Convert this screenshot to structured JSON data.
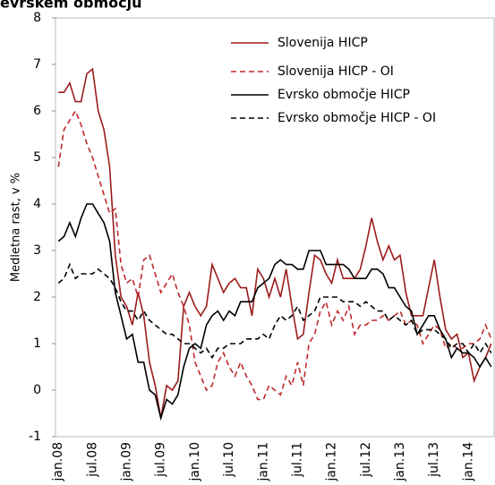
{
  "chart_data": {
    "type": "line",
    "title": "evrskem območju",
    "y_label": "Medletna rast, v %",
    "categories": [
      "jan.08",
      null,
      null,
      null,
      null,
      null,
      "jul.08",
      null,
      null,
      null,
      null,
      null,
      "jan.09",
      null,
      null,
      null,
      null,
      null,
      "jul.09",
      null,
      null,
      null,
      null,
      null,
      "jan.10",
      null,
      null,
      null,
      null,
      null,
      "jul.10",
      null,
      null,
      null,
      null,
      null,
      "jan.11",
      null,
      null,
      null,
      null,
      null,
      "jul.11",
      null,
      null,
      null,
      null,
      null,
      "jan.12",
      null,
      null,
      null,
      null,
      null,
      "jul.12",
      null,
      null,
      null,
      null,
      null,
      "jan.13",
      null,
      null,
      null,
      null,
      null,
      "jul.13",
      null,
      null,
      null,
      null,
      null,
      "jan.14",
      null,
      null,
      null,
      null
    ],
    "series": [
      {
        "name": "Slovenija HICP",
        "color": "#9b1c1c",
        "dash": false,
        "values": [
          6.4,
          6.4,
          6.6,
          6.2,
          6.2,
          6.8,
          6.9,
          6.0,
          5.6,
          4.8,
          2.9,
          2.0,
          1.8,
          1.4,
          2.1,
          1.6,
          0.6,
          0.1,
          -0.6,
          0.1,
          0.0,
          0.2,
          1.8,
          2.1,
          1.8,
          1.6,
          1.8,
          2.7,
          2.4,
          2.1,
          2.3,
          2.4,
          2.2,
          2.2,
          1.6,
          2.6,
          2.4,
          2.0,
          2.4,
          2.0,
          2.6,
          1.8,
          1.1,
          1.2,
          2.1,
          2.9,
          2.8,
          2.5,
          2.3,
          2.8,
          2.4,
          2.4,
          2.4,
          2.6,
          3.1,
          3.7,
          3.2,
          2.8,
          3.1,
          2.8,
          2.9,
          2.1,
          1.6,
          1.6,
          1.6,
          2.2,
          2.8,
          2.0,
          1.3,
          1.1,
          1.2,
          0.7,
          0.8,
          0.2,
          0.5,
          0.7,
          1.0
        ]
      },
      {
        "name": "Slovenija HICP - OI",
        "color": "#c0292b",
        "dash": true,
        "values": [
          4.8,
          5.6,
          5.8,
          6.0,
          5.7,
          5.3,
          5.0,
          4.6,
          4.2,
          3.8,
          3.9,
          2.7,
          2.3,
          2.4,
          2.0,
          2.8,
          2.9,
          2.5,
          2.1,
          2.3,
          2.5,
          2.1,
          1.8,
          1.4,
          0.6,
          0.3,
          0.0,
          0.1,
          0.6,
          0.8,
          0.5,
          0.3,
          0.6,
          0.3,
          0.1,
          -0.2,
          -0.2,
          0.1,
          0.0,
          -0.1,
          0.3,
          0.1,
          0.6,
          0.1,
          1.0,
          1.2,
          1.7,
          1.9,
          1.4,
          1.7,
          1.5,
          1.8,
          1.2,
          1.4,
          1.4,
          1.5,
          1.5,
          1.6,
          1.5,
          1.6,
          1.7,
          1.4,
          1.5,
          1.4,
          1.0,
          1.2,
          1.4,
          1.3,
          0.9,
          1.0,
          0.9,
          0.9,
          1.0,
          1.0,
          1.1,
          1.4,
          1.1
        ]
      },
      {
        "name": "Evrsko območje HICP",
        "color": "#000000",
        "dash": false,
        "values": [
          3.2,
          3.3,
          3.6,
          3.3,
          3.7,
          4.0,
          4.0,
          3.8,
          3.6,
          3.2,
          2.1,
          1.6,
          1.1,
          1.2,
          0.6,
          0.6,
          0.0,
          -0.1,
          -0.6,
          -0.2,
          -0.3,
          -0.1,
          0.5,
          0.9,
          1.0,
          0.9,
          1.4,
          1.6,
          1.7,
          1.5,
          1.7,
          1.6,
          1.9,
          1.9,
          1.9,
          2.2,
          2.3,
          2.4,
          2.7,
          2.8,
          2.7,
          2.7,
          2.6,
          2.6,
          3.0,
          3.0,
          3.0,
          2.7,
          2.7,
          2.7,
          2.7,
          2.6,
          2.4,
          2.4,
          2.4,
          2.6,
          2.6,
          2.5,
          2.2,
          2.2,
          2.0,
          1.8,
          1.7,
          1.2,
          1.4,
          1.6,
          1.6,
          1.3,
          1.1,
          0.7,
          0.9,
          0.8,
          0.8,
          0.7,
          0.5,
          0.7,
          0.5
        ]
      },
      {
        "name": "Evrsko območje HICP - OI",
        "color": "#000000",
        "dash": true,
        "values": [
          2.3,
          2.4,
          2.7,
          2.4,
          2.5,
          2.5,
          2.5,
          2.6,
          2.5,
          2.4,
          2.2,
          1.9,
          1.7,
          1.7,
          1.5,
          1.7,
          1.5,
          1.4,
          1.3,
          1.2,
          1.2,
          1.1,
          1.0,
          1.0,
          0.9,
          0.8,
          0.9,
          0.7,
          0.9,
          0.9,
          1.0,
          1.0,
          1.0,
          1.1,
          1.1,
          1.1,
          1.2,
          1.1,
          1.4,
          1.6,
          1.5,
          1.6,
          1.8,
          1.5,
          1.6,
          1.7,
          2.0,
          2.0,
          2.0,
          2.0,
          1.9,
          1.9,
          1.9,
          1.8,
          1.9,
          1.8,
          1.7,
          1.7,
          1.5,
          1.6,
          1.5,
          1.4,
          1.5,
          1.2,
          1.3,
          1.3,
          1.3,
          1.2,
          1.1,
          0.9,
          1.0,
          1.0,
          0.8,
          1.0,
          0.8,
          1.0,
          0.8
        ]
      }
    ],
    "ylim": [
      -1,
      8
    ],
    "yticks": [
      -1,
      0,
      1,
      2,
      3,
      4,
      5,
      6,
      7,
      8
    ],
    "grid": false
  }
}
